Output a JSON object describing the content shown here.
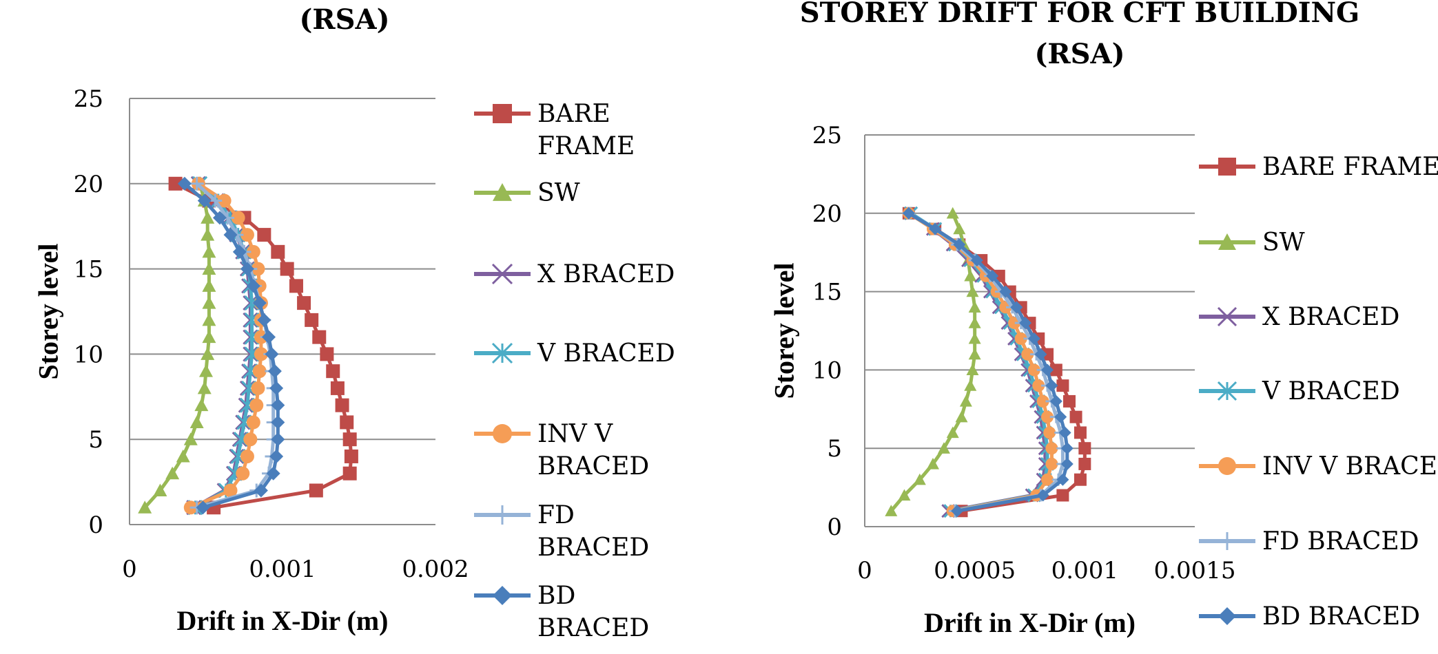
{
  "chart_data": [
    {
      "type": "line",
      "title": "(RSA)",
      "xlabel": "Drift in X-Dir (m)",
      "ylabel": "Storey level",
      "xlim": [
        0,
        0.002
      ],
      "ylim": [
        0,
        25
      ],
      "xticks": [
        "0",
        "0.001",
        "0.002"
      ],
      "yticks": [
        "0",
        "5",
        "10",
        "15",
        "20",
        "25"
      ],
      "grid": "horizontal",
      "legend": "right",
      "storeys": [
        1,
        2,
        3,
        4,
        5,
        6,
        7,
        8,
        9,
        10,
        11,
        12,
        13,
        14,
        15,
        16,
        17,
        18,
        19,
        20
      ],
      "series": [
        {
          "name": "BARE FRAME",
          "legend_lines": [
            "BARE",
            "FRAME"
          ],
          "color": "#BE4B48",
          "marker": "square",
          "values": [
            0.00055,
            0.00122,
            0.00144,
            0.00145,
            0.00144,
            0.00142,
            0.00139,
            0.00136,
            0.00133,
            0.00129,
            0.00124,
            0.00119,
            0.00114,
            0.00109,
            0.00103,
            0.00097,
            0.00088,
            0.00075,
            0.00052,
            0.0003
          ]
        },
        {
          "name": "SW",
          "legend_lines": [
            "SW"
          ],
          "color": "#98B954",
          "marker": "triangle",
          "values": [
            0.0001,
            0.0002,
            0.00028,
            0.00035,
            0.0004,
            0.00044,
            0.00047,
            0.00049,
            0.0005,
            0.00051,
            0.00052,
            0.00052,
            0.00052,
            0.00052,
            0.00052,
            0.00052,
            0.00051,
            0.00051,
            0.00049,
            0.00046
          ]
        },
        {
          "name": "X BRACED",
          "legend_lines": [
            "X BRACED"
          ],
          "color": "#7E5F9F",
          "marker": "x",
          "values": [
            0.00042,
            0.00062,
            0.00068,
            0.0007,
            0.00072,
            0.00074,
            0.00076,
            0.00077,
            0.00078,
            0.00079,
            0.00079,
            0.00079,
            0.00079,
            0.00078,
            0.00077,
            0.00074,
            0.0007,
            0.00065,
            0.00057,
            0.00045
          ]
        },
        {
          "name": "V BRACED",
          "legend_lines": [
            "V BRACED"
          ],
          "color": "#4BACC6",
          "marker": "star",
          "values": [
            0.00043,
            0.00063,
            0.00069,
            0.00071,
            0.00073,
            0.00075,
            0.00077,
            0.00078,
            0.00079,
            0.0008,
            0.0008,
            0.0008,
            0.0008,
            0.00079,
            0.00078,
            0.00075,
            0.00071,
            0.00066,
            0.00058,
            0.00046
          ]
        },
        {
          "name": "INV V BRACED",
          "legend_lines": [
            "INV V",
            "BRACED"
          ],
          "color": "#F59D56",
          "marker": "circle",
          "values": [
            0.0004,
            0.00066,
            0.00074,
            0.00077,
            0.00079,
            0.00081,
            0.00083,
            0.00084,
            0.00085,
            0.00086,
            0.00086,
            0.00086,
            0.00086,
            0.00085,
            0.00084,
            0.00081,
            0.00077,
            0.00071,
            0.00062,
            0.00045
          ]
        },
        {
          "name": "FD BRACED",
          "legend_lines": [
            "FD",
            "BRACED"
          ],
          "color": "#95B3D7",
          "marker": "plus",
          "values": [
            0.00044,
            0.00083,
            0.00091,
            0.00093,
            0.00094,
            0.00094,
            0.00094,
            0.00094,
            0.00093,
            0.00092,
            0.0009,
            0.00088,
            0.00085,
            0.00082,
            0.00079,
            0.00075,
            0.0007,
            0.00064,
            0.00056,
            0.00044
          ]
        },
        {
          "name": "BD BRACED",
          "legend_lines": [
            "BD",
            "BRACED"
          ],
          "color": "#4A7EBB",
          "marker": "diamond",
          "values": [
            0.00048,
            0.00086,
            0.00094,
            0.00096,
            0.00097,
            0.00097,
            0.00097,
            0.00096,
            0.00095,
            0.00093,
            0.00091,
            0.00088,
            0.00085,
            0.00081,
            0.00077,
            0.00072,
            0.00066,
            0.00059,
            0.00049,
            0.00036
          ]
        }
      ]
    },
    {
      "type": "line",
      "title": "STOREY DRIFT FOR CFT BUILDING (RSA)",
      "title_lines": [
        "STOREY DRIFT FOR CFT BUILDING",
        "(RSA)"
      ],
      "xlabel": "Drift in X-Dir (m)",
      "ylabel": "Storey level",
      "xlim": [
        0,
        0.0015
      ],
      "ylim": [
        0,
        25
      ],
      "xticks": [
        "0",
        "0.0005",
        "0.001",
        "0.0015"
      ],
      "yticks": [
        "0",
        "5",
        "10",
        "15",
        "20",
        "25"
      ],
      "grid": "horizontal",
      "legend": "right",
      "storeys": [
        1,
        2,
        3,
        4,
        5,
        6,
        7,
        8,
        9,
        10,
        11,
        12,
        13,
        14,
        15,
        16,
        17,
        18,
        19,
        20
      ],
      "series": [
        {
          "name": "BARE FRAME",
          "legend_lines": [
            "BARE FRAME"
          ],
          "color": "#BE4B48",
          "marker": "square",
          "values": [
            0.00044,
            0.0009,
            0.00098,
            0.001,
            0.001,
            0.00098,
            0.00096,
            0.00093,
            0.0009,
            0.00087,
            0.00083,
            0.00079,
            0.00075,
            0.00071,
            0.00066,
            0.00061,
            0.00053,
            0.00043,
            0.00032,
            0.0002
          ]
        },
        {
          "name": "SW",
          "legend_lines": [
            "SW"
          ],
          "color": "#98B954",
          "marker": "triangle",
          "values": [
            0.00012,
            0.00018,
            0.00025,
            0.00031,
            0.00036,
            0.0004,
            0.00044,
            0.00046,
            0.00048,
            0.00049,
            0.0005,
            0.0005,
            0.0005,
            0.0005,
            0.00049,
            0.00048,
            0.00047,
            0.00045,
            0.00043,
            0.0004
          ]
        },
        {
          "name": "X BRACED",
          "legend_lines": [
            "X BRACED"
          ],
          "color": "#7E5F9F",
          "marker": "x",
          "values": [
            0.00038,
            0.00076,
            0.00081,
            0.00082,
            0.00082,
            0.00081,
            0.0008,
            0.00078,
            0.00076,
            0.00074,
            0.00071,
            0.00068,
            0.00065,
            0.00061,
            0.00057,
            0.00053,
            0.00047,
            0.0004,
            0.00031,
            0.00021
          ]
        },
        {
          "name": "V BRACED",
          "legend_lines": [
            "V BRACED"
          ],
          "color": "#4BACC6",
          "marker": "star",
          "values": [
            0.00039,
            0.00077,
            0.00082,
            0.00083,
            0.00083,
            0.00082,
            0.00081,
            0.00079,
            0.00077,
            0.00075,
            0.00072,
            0.00069,
            0.00066,
            0.00062,
            0.00058,
            0.00054,
            0.00048,
            0.00041,
            0.00032,
            0.00021
          ]
        },
        {
          "name": "INV V BRACED",
          "legend_lines": [
            "INV V BRACED"
          ],
          "color": "#F59D56",
          "marker": "circle",
          "values": [
            0.0004,
            0.00078,
            0.00083,
            0.00085,
            0.00085,
            0.00084,
            0.00083,
            0.00081,
            0.00079,
            0.00077,
            0.00074,
            0.00071,
            0.00068,
            0.00064,
            0.0006,
            0.00055,
            0.00049,
            0.00041,
            0.00031,
            0.0002
          ]
        },
        {
          "name": "FD BRACED",
          "legend_lines": [
            "FD BRACED"
          ],
          "color": "#95B3D7",
          "marker": "plus",
          "values": [
            0.00041,
            0.0008,
            0.00088,
            0.0009,
            0.0009,
            0.00089,
            0.00087,
            0.00085,
            0.00083,
            0.00081,
            0.00078,
            0.00075,
            0.00071,
            0.00067,
            0.00062,
            0.00057,
            0.0005,
            0.00042,
            0.00032,
            0.0002
          ]
        },
        {
          "name": "BD BRACED",
          "legend_lines": [
            "BD BRACED"
          ],
          "color": "#4A7EBB",
          "marker": "diamond",
          "values": [
            0.00042,
            0.00081,
            0.0009,
            0.00092,
            0.00092,
            0.00091,
            0.00089,
            0.00087,
            0.00085,
            0.00083,
            0.0008,
            0.00077,
            0.00073,
            0.00069,
            0.00064,
            0.00058,
            0.00051,
            0.00043,
            0.00032,
            0.0002
          ]
        }
      ]
    }
  ]
}
